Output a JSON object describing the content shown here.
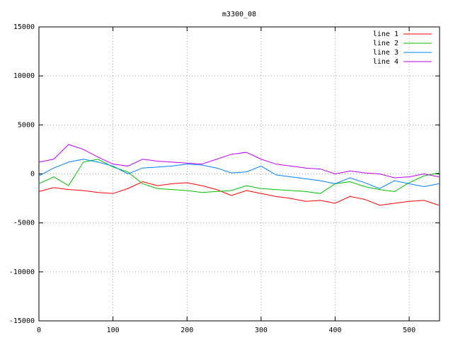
{
  "chart_data": {
    "type": "line",
    "title": "m3300_08",
    "x": [
      0,
      20,
      40,
      60,
      80,
      100,
      120,
      140,
      160,
      180,
      200,
      220,
      240,
      260,
      280,
      300,
      320,
      340,
      360,
      380,
      400,
      420,
      440,
      460,
      480,
      500,
      520,
      540
    ],
    "series": [
      {
        "name": "line 1",
        "color": "#ff0000",
        "values": [
          -1800,
          -1400,
          -1600,
          -1700,
          -1900,
          -2000,
          -1500,
          -800,
          -1200,
          -1000,
          -900,
          -1200,
          -1600,
          -2200,
          -1700,
          -2000,
          -2300,
          -2500,
          -2800,
          -2700,
          -3000,
          -2300,
          -2600,
          -3200,
          -3000,
          -2800,
          -2700,
          -3200
        ]
      },
      {
        "name": "line 2",
        "color": "#00c000",
        "values": [
          -1000,
          -300,
          -1200,
          1200,
          1500,
          700,
          200,
          -1000,
          -1500,
          -1600,
          -1700,
          -1900,
          -1800,
          -1700,
          -1200,
          -1500,
          -1600,
          -1700,
          -1800,
          -2000,
          -1000,
          -800,
          -1300,
          -1600,
          -1800,
          -900,
          -200,
          100
        ]
      },
      {
        "name": "line 3",
        "color": "#0080ff",
        "values": [
          -200,
          600,
          1200,
          1500,
          1200,
          800,
          0,
          600,
          700,
          800,
          1000,
          900,
          600,
          100,
          200,
          800,
          -100,
          -300,
          -500,
          -700,
          -1000,
          -400,
          -900,
          -1500,
          -700,
          -1000,
          -1300,
          -1000
        ]
      },
      {
        "name": "line 4",
        "color": "#c000ff",
        "values": [
          1200,
          1500,
          3000,
          2500,
          1700,
          1000,
          800,
          1500,
          1300,
          1200,
          1100,
          1000,
          1500,
          2000,
          2200,
          1500,
          1000,
          800,
          600,
          500,
          0,
          300,
          100,
          0,
          -400,
          -300,
          0,
          -300
        ]
      }
    ],
    "xlim": [
      0,
      541
    ],
    "xticks": [
      0,
      100,
      200,
      300,
      400,
      500
    ],
    "ylim": [
      -15000,
      15000
    ],
    "yticks": [
      -15000,
      -10000,
      -5000,
      0,
      5000,
      10000,
      15000
    ],
    "grid": true,
    "legend": "top-right"
  }
}
